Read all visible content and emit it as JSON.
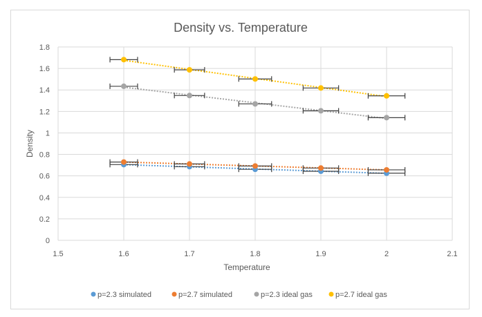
{
  "chart_data": {
    "type": "scatter",
    "title": "Density vs. Temperature",
    "xlabel": "Temperature",
    "ylabel": "Density",
    "xlim": [
      1.5,
      2.1
    ],
    "ylim": [
      0,
      1.8
    ],
    "x_ticks": [
      "1.5",
      "1.6",
      "1.7",
      "1.8",
      "1.9",
      "2",
      "2.1"
    ],
    "x_tick_values": [
      1.5,
      1.6,
      1.7,
      1.8,
      1.9,
      2.0,
      2.1
    ],
    "y_ticks": [
      "0",
      "0.2",
      "0.4",
      "0.6",
      "0.8",
      "1",
      "1.2",
      "1.4",
      "1.6",
      "1.8"
    ],
    "y_tick_values": [
      0,
      0.2,
      0.4,
      0.6,
      0.8,
      1.0,
      1.2,
      1.4,
      1.6,
      1.8
    ],
    "grid": true,
    "legend_position": "bottom",
    "x": [
      1.6,
      1.7,
      1.8,
      1.9,
      2.0
    ],
    "x_error": [
      0.021,
      0.023,
      0.025,
      0.027,
      0.028
    ],
    "series": [
      {
        "name": "p=2.3 simulated",
        "color": "#5B9BD5",
        "values": [
          0.705,
          0.686,
          0.661,
          0.643,
          0.625
        ]
      },
      {
        "name": "p=2.7 simulated",
        "color": "#ED7D31",
        "values": [
          0.729,
          0.711,
          0.692,
          0.673,
          0.656
        ]
      },
      {
        "name": "p=2.3 ideal gas",
        "color": "#A5A5A5",
        "values": [
          1.434,
          1.348,
          1.27,
          1.206,
          1.142
        ]
      },
      {
        "name": "p=2.7 ideal gas",
        "color": "#FFC000",
        "values": [
          1.682,
          1.587,
          1.502,
          1.418,
          1.345
        ]
      }
    ],
    "trendline": "dotted linear",
    "error_bar_color": "#404040",
    "gridline_color": "#d9d9d9"
  }
}
